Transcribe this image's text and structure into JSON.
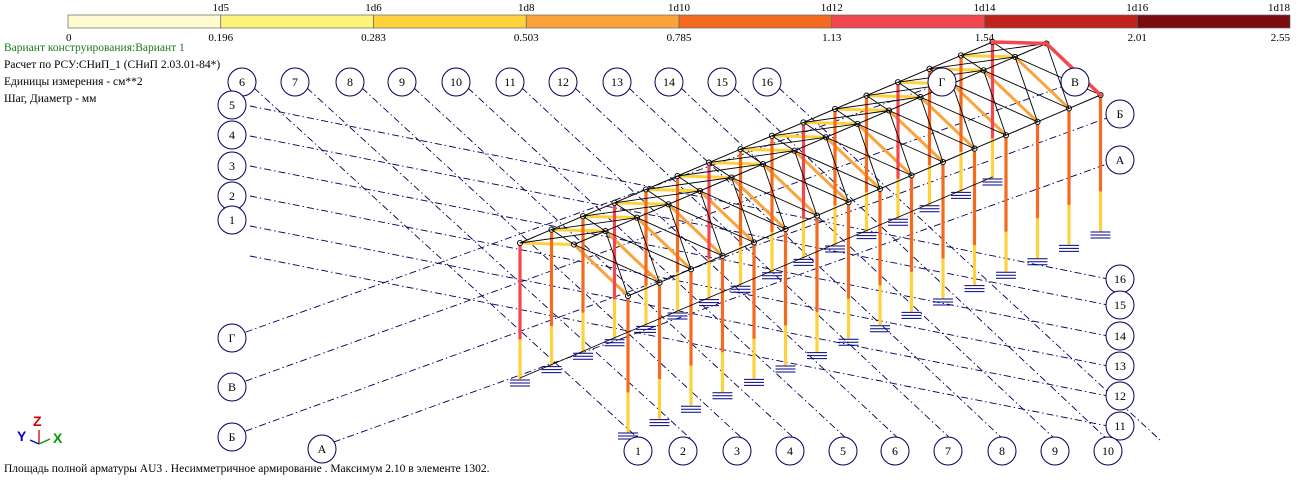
{
  "scale": {
    "top_labels": [
      "1d5",
      "1d6",
      "1d8",
      "1d10",
      "1d12",
      "1d14",
      "1d16",
      "1d18"
    ],
    "bottom_labels": [
      "0",
      "0.196",
      "0.283",
      "0.503",
      "0.785",
      "1.13",
      "1.54",
      "2.01",
      "2.55"
    ],
    "colors": [
      "#fffbd0",
      "#fdf27a",
      "#fdd23c",
      "#f9a33a",
      "#f46a1e",
      "#f2474f",
      "#c0221c",
      "#7a0c10"
    ]
  },
  "info": {
    "variant": "Вариант конструирования:Вариант 1",
    "calc": "Расчет по РСУ:СНиП_1 (СНиП 2.03.01-84*)",
    "units": "Единицы измерения - см**2",
    "step": "Шаг, Диаметр - мм"
  },
  "footer": "Площадь полной арматуры AU3 . Несимметричное армирование . Максимум 2.10 в элементе 1302.",
  "axes": {
    "top_numbers": [
      "6",
      "7",
      "8",
      "9",
      "10",
      "11",
      "12",
      "13",
      "14",
      "15",
      "16"
    ],
    "top_letters": [
      "Г",
      "В"
    ],
    "left_numbers": [
      "5",
      "4",
      "3",
      "2",
      "1"
    ],
    "left_letters": [
      "Г",
      "В",
      "Б"
    ],
    "right_letters": [
      "Б",
      "А"
    ],
    "right_numbers": [
      "16",
      "15",
      "14",
      "13",
      "12",
      "11"
    ],
    "bottom_letter": "А",
    "bottom_numbers": [
      "1",
      "2",
      "3",
      "4",
      "5",
      "6",
      "7",
      "8",
      "9",
      "10"
    ]
  },
  "triad": {
    "y": "Y",
    "z": "Z",
    "x": "X",
    "y_color": "#0000cc",
    "z_color": "#cc0000",
    "x_color": "#009900"
  }
}
